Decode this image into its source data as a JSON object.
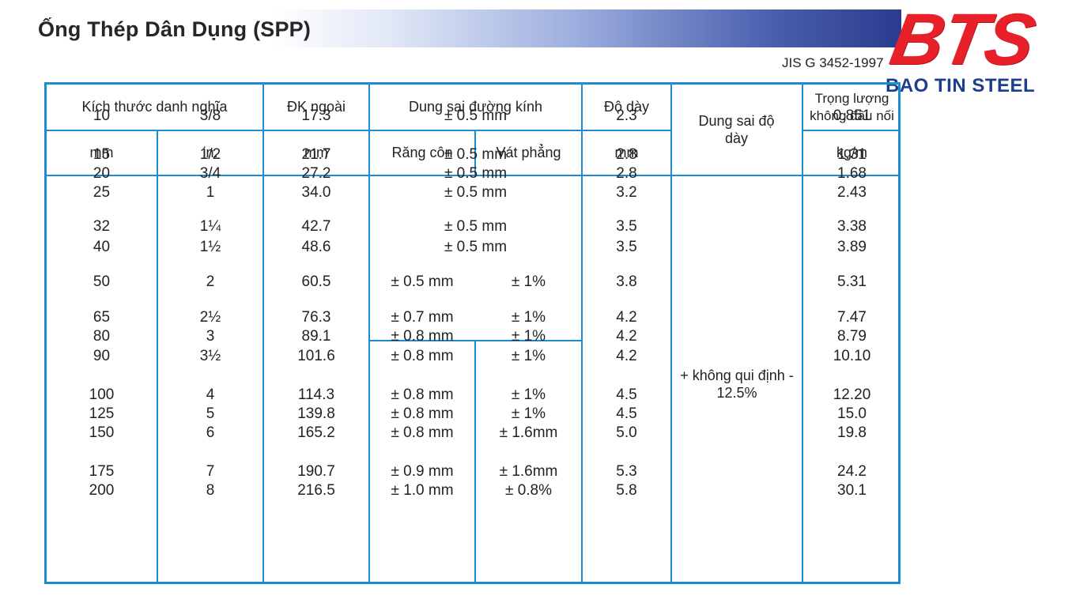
{
  "header": {
    "title": "Ống Thép Dân Dụng (SPP)",
    "standard": "JIS G 3452-1997"
  },
  "logo": {
    "mark": "BTS",
    "name": "BAO TIN STEEL"
  },
  "table": {
    "headers": {
      "nominal_size": "Kích thước danh nghĩa",
      "outer_diameter": "ĐK ngoài",
      "diameter_tolerance": "Dung sai đường kính",
      "thickness": "Độ dày",
      "thickness_tolerance": "Dung sai độ dày",
      "weight": "Trọng lượng không đầu nối"
    },
    "subheaders": {
      "nominal_mm": "mm",
      "nominal_in": "in.",
      "outer_mm": "mm",
      "threaded": "Răng côn",
      "beveled": "Vát phẳng",
      "thickness_mm": "mm",
      "weight_unit": "kg/m"
    },
    "thickness_tolerance_value": "+ không qui định - 12.5%",
    "rows": [
      {
        "mm": "10",
        "in": "3/8",
        "od": "17.3",
        "tol": "± 0.5 mm",
        "tol_bevel": "",
        "thick": "2.3",
        "weight": "0.851"
      },
      {
        "mm": "15",
        "in": "1/2",
        "od": "21.7",
        "tol": "± 0.5 mm",
        "tol_bevel": "",
        "thick": "2.8",
        "weight": "1.31"
      },
      {
        "mm": "20",
        "in": "3/4",
        "od": "27.2",
        "tol": "± 0.5 mm",
        "tol_bevel": "",
        "thick": "2.8",
        "weight": "1.68"
      },
      {
        "mm": "25",
        "in": "1",
        "od": "34.0",
        "tol": "± 0.5 mm",
        "tol_bevel": "",
        "thick": "3.2",
        "weight": "2.43"
      },
      {
        "mm": "32",
        "in": "1¼",
        "od": "42.7",
        "tol": "± 0.5 mm",
        "tol_bevel": "",
        "thick": "3.5",
        "weight": "3.38"
      },
      {
        "mm": "40",
        "in": "1½",
        "od": "48.6",
        "tol": "± 0.5 mm",
        "tol_bevel": "",
        "thick": "3.5",
        "weight": "3.89"
      },
      {
        "mm": "50",
        "in": "2",
        "od": "60.5",
        "tol": "± 0.5 mm",
        "tol_bevel": "± 1%",
        "thick": "3.8",
        "weight": "5.31"
      },
      {
        "mm": "65",
        "in": "2½",
        "od": "76.3",
        "tol": "± 0.7 mm",
        "tol_bevel": "± 1%",
        "thick": "4.2",
        "weight": "7.47"
      },
      {
        "mm": "80",
        "in": "3",
        "od": "89.1",
        "tol": "± 0.8 mm",
        "tol_bevel": "± 1%",
        "thick": "4.2",
        "weight": "8.79"
      },
      {
        "mm": "90",
        "in": "3½",
        "od": "101.6",
        "tol": "± 0.8 mm",
        "tol_bevel": "± 1%",
        "thick": "4.2",
        "weight": "10.10"
      },
      {
        "mm": "100",
        "in": "4",
        "od": "114.3",
        "tol": "± 0.8 mm",
        "tol_bevel": "± 1%",
        "thick": "4.5",
        "weight": "12.20"
      },
      {
        "mm": "125",
        "in": "5",
        "od": "139.8",
        "tol": "± 0.8 mm",
        "tol_bevel": "± 1%",
        "thick": "4.5",
        "weight": "15.0"
      },
      {
        "mm": "150",
        "in": "6",
        "od": "165.2",
        "tol": "± 0.8 mm",
        "tol_bevel": "± 1.6mm",
        "thick": "5.0",
        "weight": "19.8"
      },
      {
        "mm": "175",
        "in": "7",
        "od": "190.7",
        "tol": "± 0.9 mm",
        "tol_bevel": "± 1.6mm",
        "thick": "5.3",
        "weight": "24.2"
      },
      {
        "mm": "200",
        "in": "8",
        "od": "216.5",
        "tol": "± 1.0 mm",
        "tol_bevel": "± 0.8%",
        "thick": "5.8",
        "weight": "30.1"
      }
    ]
  }
}
